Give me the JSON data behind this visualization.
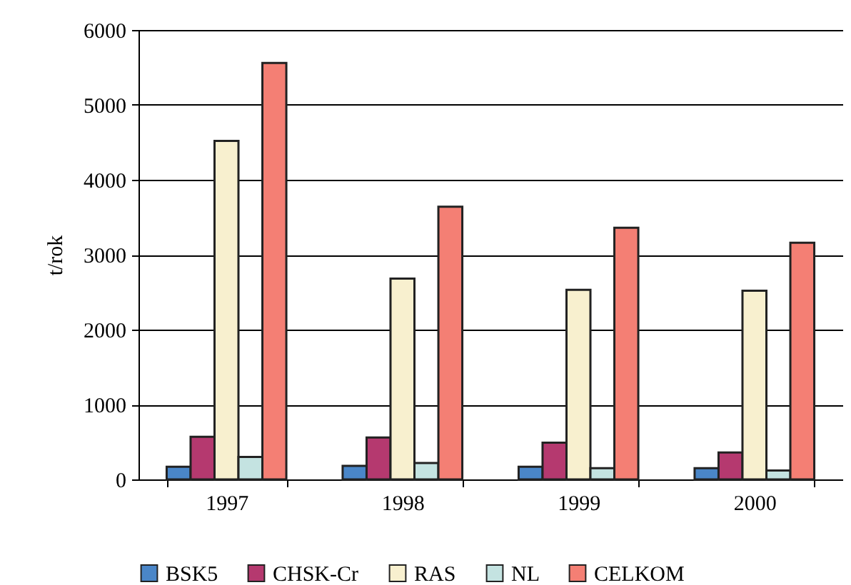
{
  "chart_data": {
    "type": "bar",
    "ylabel": "t/rok",
    "categories": [
      "1997",
      "1998",
      "1999",
      "2000"
    ],
    "series": [
      {
        "name": "BSK5",
        "color": "#4a86c8",
        "values": [
          170,
          180,
          170,
          150
        ]
      },
      {
        "name": "CHSK-Cr",
        "color": "#b5396f",
        "values": [
          570,
          560,
          490,
          360
        ]
      },
      {
        "name": "RAS",
        "color": "#f8f0cf",
        "values": [
          4520,
          2680,
          2530,
          2520
        ]
      },
      {
        "name": "NL",
        "color": "#c4e3e1",
        "values": [
          300,
          220,
          150,
          120
        ]
      },
      {
        "name": "CELKOM",
        "color": "#f47f74",
        "values": [
          5560,
          3640,
          3360,
          3160
        ]
      }
    ],
    "ylim": [
      0,
      6000
    ],
    "yticks": [
      0,
      1000,
      2000,
      3000,
      4000,
      5000,
      6000
    ],
    "grid": "y",
    "legend": "bottom"
  }
}
